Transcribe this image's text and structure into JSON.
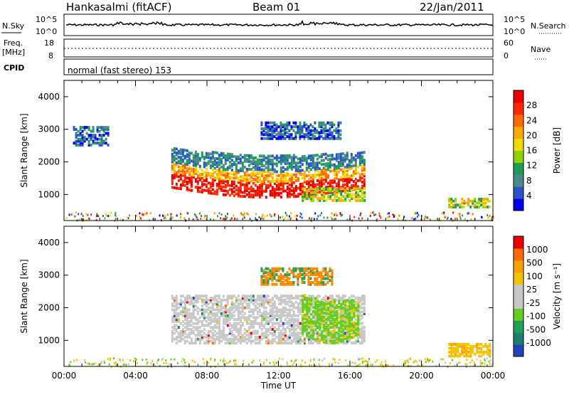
{
  "header": {
    "station": "Hankasalmi (fitACF)",
    "beam": "Beam 01",
    "date": "22/Jan/2011"
  },
  "top_strip": {
    "left_label": "N.Sky",
    "right_label": "N.Search",
    "left_ticks": [
      "10^5",
      "10^0"
    ],
    "right_ticks": [
      "10^5",
      "10^0"
    ]
  },
  "freq_strip": {
    "left_label_1": "Freq.",
    "left_label_2": "[MHz]",
    "left_ticks": [
      "18",
      "8"
    ],
    "right_ticks": [
      "60",
      "0"
    ],
    "right_label": "Nave"
  },
  "cpid": {
    "label": "CPID",
    "text": "normal (fast stereo) 153"
  },
  "chart_data": [
    {
      "type": "heatmap",
      "name": "power",
      "ylabel": "Slant Range [km]",
      "xlabel": "",
      "x_range_hours": [
        0,
        24
      ],
      "ylim": [
        200,
        4500
      ],
      "yticks": [
        "4000",
        "3000",
        "2000",
        "1000"
      ],
      "colorbar": {
        "label": "Power [dB]",
        "tick_labels": [
          "28",
          "24",
          "20",
          "16",
          "12",
          "8",
          "4"
        ],
        "colors": [
          "#0000ee",
          "#2a55c8",
          "#4b8a8a",
          "#1f9c54",
          "#8fd400",
          "#f2dc00",
          "#ffaa00",
          "#ff6a00",
          "#ff2a00",
          "#e60000"
        ]
      },
      "features": [
        {
          "t0": 0.5,
          "t1": 2.5,
          "r0": 2500,
          "r1": 3100,
          "level": "low"
        },
        {
          "t0": 6.0,
          "t1": 16.8,
          "r0": 900,
          "r1": 2400,
          "level": "high"
        },
        {
          "t0": 13.3,
          "t1": 16.8,
          "r0": 800,
          "r1": 1200,
          "level": "mid"
        },
        {
          "t0": 11.0,
          "t1": 15.5,
          "r0": 2700,
          "r1": 3200,
          "level": "low"
        },
        {
          "t0": 21.5,
          "t1": 23.8,
          "r0": 600,
          "r1": 900,
          "level": "mid"
        }
      ]
    },
    {
      "type": "heatmap",
      "name": "velocity",
      "ylabel": "Slant Range [km]",
      "xlabel": "Time UT",
      "x_range_hours": [
        0,
        24
      ],
      "xticks": [
        "00:00",
        "04:00",
        "08:00",
        "12:00",
        "16:00",
        "20:00",
        "00:00"
      ],
      "ylim": [
        200,
        4500
      ],
      "yticks": [
        "4000",
        "3000",
        "2000",
        "1000"
      ],
      "colorbar": {
        "label": "Velocity [m s⁻¹]",
        "tick_labels": [
          "1000",
          "500",
          "100",
          "25",
          "-25",
          "-100",
          "-500",
          "-1000"
        ],
        "colors": [
          "#2244bb",
          "#1f7f6f",
          "#1fa055",
          "#66cc22",
          "#c8c8c8",
          "#c8c8c8",
          "#f2c400",
          "#ffa000",
          "#ff6a00",
          "#e60000"
        ]
      },
      "features": [
        {
          "t0": 6.0,
          "t1": 16.8,
          "r0": 900,
          "r1": 2400,
          "level": "ground scatter (grey)"
        },
        {
          "t0": 13.3,
          "t1": 16.5,
          "r0": 800,
          "r1": 1200,
          "level": "green"
        },
        {
          "t0": 11.0,
          "t1": 15.0,
          "r0": 2700,
          "r1": 3200,
          "level": "orange"
        },
        {
          "t0": 21.5,
          "t1": 23.8,
          "r0": 500,
          "r1": 900,
          "level": "yellow"
        }
      ]
    }
  ]
}
